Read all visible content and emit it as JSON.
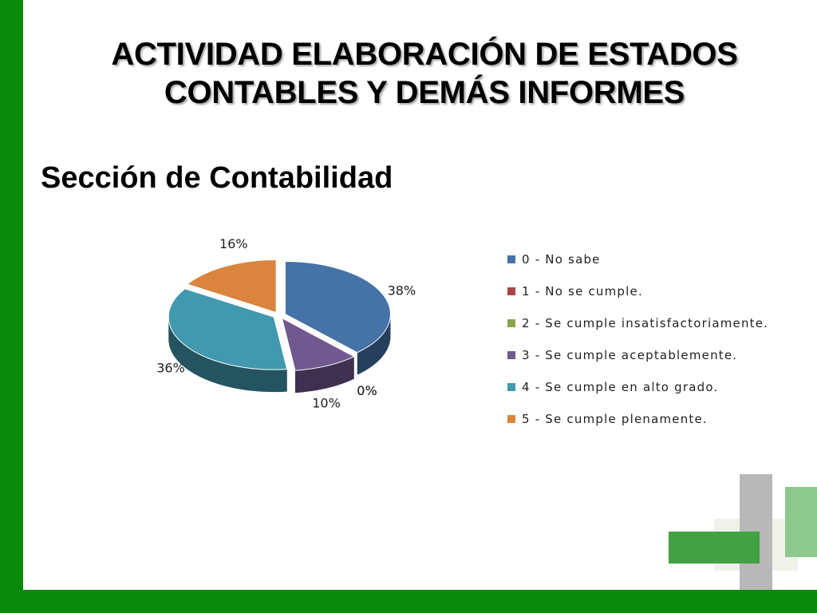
{
  "title_line1": "ACTIVIDAD ELABORACIÓN DE ESTADOS",
  "title_line2": "CONTABLES Y DEMÁS INFORMES",
  "chart_data": {
    "type": "pie",
    "title": "Sección de Contabilidad",
    "three_d": true,
    "legend_position": "right",
    "categories": [
      "0 - No sabe",
      "1 - No se cumple.",
      "2 - Se cumple insatisfactoriamente.",
      "3 - Se cumple aceptablemente.",
      "4 - Se cumple en alto grado.",
      "5 - Se cumple plenamente."
    ],
    "values": [
      38,
      0,
      0,
      10,
      36,
      16
    ],
    "labels": [
      "38%",
      "0%",
      "0%",
      "10%",
      "36%",
      "16%"
    ],
    "colors": [
      "#4572a7",
      "#aa4643",
      "#89a54e",
      "#71588f",
      "#4198af",
      "#db843d"
    ]
  },
  "theme": {
    "green": "#0a8a0a",
    "light_green": "#8cc98c"
  }
}
